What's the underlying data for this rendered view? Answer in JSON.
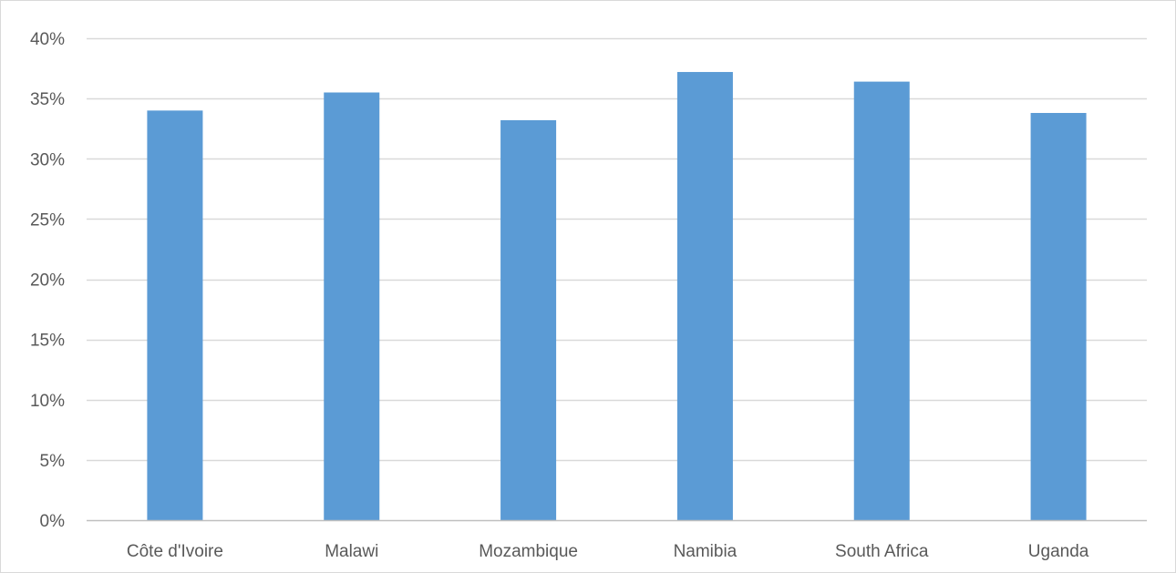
{
  "chart_data": {
    "type": "bar",
    "categories": [
      "Côte d'Ivoire",
      "Malawi",
      "Mozambique",
      "Namibia",
      "South Africa",
      "Uganda"
    ],
    "values": [
      0.34,
      0.355,
      0.332,
      0.372,
      0.364,
      0.338
    ],
    "title": "",
    "xlabel": "",
    "ylabel": "",
    "ylim": [
      0,
      0.4
    ],
    "yticks": [
      0,
      0.05,
      0.1,
      0.15,
      0.2,
      0.25,
      0.3,
      0.35,
      0.4
    ],
    "ytick_labels": [
      "0%",
      "5%",
      "10%",
      "15%",
      "20%",
      "25%",
      "30%",
      "35%",
      "40%"
    ],
    "grid": true,
    "legend": "none",
    "colors": {
      "bar": "#5b9bd5",
      "grid": "#d9d9d9",
      "axis": "#bfbfbf",
      "text": "#595959"
    }
  }
}
